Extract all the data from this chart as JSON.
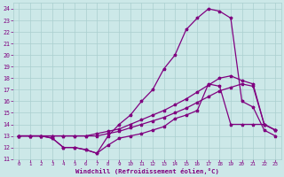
{
  "x_values": [
    0,
    1,
    2,
    3,
    4,
    5,
    6,
    7,
    8,
    9,
    10,
    11,
    12,
    13,
    14,
    15,
    16,
    17,
    18,
    19,
    20,
    21,
    22,
    23
  ],
  "line_peak": [
    13,
    13,
    13,
    12.8,
    12.0,
    12.0,
    11.8,
    11.5,
    13.0,
    14.0,
    14.8,
    16.0,
    17.0,
    18.8,
    20.0,
    22.2,
    23.2,
    24.0,
    23.8,
    23.2,
    16.0,
    15.5,
    13.5,
    13.0
  ],
  "line_dip": [
    13,
    13,
    13,
    12.8,
    12.0,
    12.0,
    11.8,
    11.5,
    12.2,
    12.8,
    13.0,
    13.2,
    13.5,
    13.8,
    14.5,
    14.8,
    15.2,
    17.5,
    17.3,
    14.0,
    14.0,
    14.0,
    14.0,
    13.5
  ],
  "line_hi": [
    13,
    13,
    13,
    13.0,
    13.0,
    13.0,
    13.0,
    13.2,
    13.4,
    13.6,
    14.0,
    14.4,
    14.8,
    15.2,
    15.7,
    16.2,
    16.8,
    17.4,
    18.0,
    18.2,
    17.8,
    17.5,
    14.0,
    13.5
  ],
  "line_lo": [
    13,
    13,
    13,
    13.0,
    13.0,
    13.0,
    13.0,
    13.0,
    13.2,
    13.4,
    13.7,
    14.0,
    14.3,
    14.6,
    15.0,
    15.4,
    15.9,
    16.4,
    16.9,
    17.2,
    17.5,
    17.3,
    14.0,
    13.5
  ],
  "color": "#800080",
  "bg_color": "#cce8e8",
  "grid_color": "#aacfcf",
  "xlabel": "Windchill (Refroidissement éolien,°C)",
  "xlabel_color": "#800080",
  "tick_color": "#800080",
  "ylim": [
    11,
    24.5
  ],
  "xlim": [
    -0.5,
    23.5
  ],
  "yticks": [
    11,
    12,
    13,
    14,
    15,
    16,
    17,
    18,
    19,
    20,
    21,
    22,
    23,
    24
  ],
  "xticks": [
    0,
    1,
    2,
    3,
    4,
    5,
    6,
    7,
    8,
    9,
    10,
    11,
    12,
    13,
    14,
    15,
    16,
    17,
    18,
    19,
    20,
    21,
    22,
    23
  ]
}
